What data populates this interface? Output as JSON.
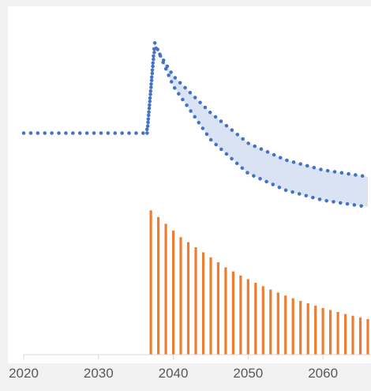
{
  "chart_data": {
    "type": "line",
    "title": "",
    "xlabel": "",
    "ylabel": "",
    "x_ticks": [
      "2020",
      "2030",
      "2040",
      "2050",
      "2060"
    ],
    "x_range": [
      2020,
      2066
    ],
    "y_range": [
      0,
      10
    ],
    "grid": false,
    "legend": "none",
    "series": [
      {
        "kind": "dotted-line",
        "color": "#4472c4",
        "x": [
          2020,
          2036.5,
          2037.5,
          2040,
          2045,
          2050,
          2055,
          2060,
          2066
        ],
        "values": [
          6.6,
          6.6,
          9.2,
          8.3,
          7.2,
          6.3,
          5.8,
          5.5,
          5.3
        ]
      },
      {
        "kind": "dotted-line",
        "color": "#4472c4",
        "x": [
          2036.5,
          2037.5,
          2040,
          2045,
          2050,
          2055,
          2060,
          2066
        ],
        "values": [
          6.6,
          9.3,
          8.0,
          6.4,
          5.4,
          4.9,
          4.6,
          4.4
        ]
      },
      {
        "kind": "bars",
        "color": "#ed7d31",
        "x": [
          2037,
          2038,
          2039,
          2040,
          2041,
          2042,
          2043,
          2044,
          2045,
          2046,
          2047,
          2048,
          2049,
          2050,
          2051,
          2052,
          2053,
          2054,
          2055,
          2056,
          2057,
          2058,
          2059,
          2060,
          2061,
          2062,
          2063,
          2064,
          2065,
          2066
        ],
        "values": [
          4.3,
          4.1,
          3.9,
          3.7,
          3.5,
          3.35,
          3.2,
          3.05,
          2.9,
          2.75,
          2.6,
          2.48,
          2.36,
          2.25,
          2.14,
          2.04,
          1.94,
          1.85,
          1.76,
          1.68,
          1.6,
          1.53,
          1.46,
          1.39,
          1.33,
          1.27,
          1.21,
          1.16,
          1.11,
          1.06
        ]
      }
    ],
    "band": {
      "color": "#dae3f3",
      "between_series": [
        0,
        1
      ]
    },
    "colors": {
      "axis": "#d9d9d9",
      "tick_text": "#595959",
      "plot_bg": "#ffffff",
      "page_bg": "#f2f2f2"
    }
  }
}
